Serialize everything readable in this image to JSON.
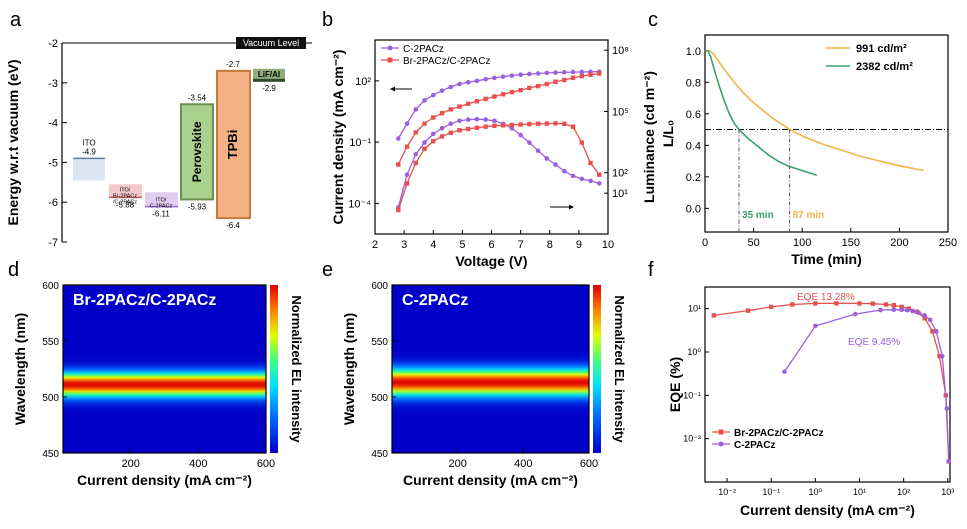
{
  "panels": {
    "a": {
      "letter": "a"
    },
    "b": {
      "letter": "b"
    },
    "c": {
      "letter": "c"
    },
    "d": {
      "letter": "d"
    },
    "e": {
      "letter": "e"
    },
    "f": {
      "letter": "f"
    }
  },
  "chart_data": [
    {
      "id": "a",
      "type": "diagram",
      "ylabel": "Energy w.r.t vacuum (eV)",
      "ylim": [
        -7,
        -2
      ],
      "yticks": [
        "-2",
        "-3",
        "-4",
        "-5",
        "-6",
        "-7"
      ],
      "vacuum_label": "Vacuum Level",
      "bands": [
        {
          "name": "ITO",
          "label": "ITO",
          "top": -4.9,
          "top_label": "-4.9",
          "bottom_label": "",
          "color": "#dbe6f2"
        },
        {
          "name": "ito-br-c",
          "label": "ITO/ Br-2PACz /C-2PACz",
          "top": -5.55,
          "bottom": -5.88,
          "top_label": "",
          "bottom_label": "-5.88",
          "color": "#f3c9c9"
        },
        {
          "name": "ito-c",
          "label": "ITO/ C-2PACz",
          "top": -5.75,
          "bottom": -6.11,
          "top_label": "",
          "bottom_label": "-6.11",
          "color": "#e2cdf0"
        },
        {
          "name": "perovskite",
          "label": "Perovskite",
          "top": -3.54,
          "bottom": -5.93,
          "top_label": "-3.54",
          "bottom_label": "-5.93",
          "color": "#a9d18e"
        },
        {
          "name": "tpbi",
          "label": "TPBi",
          "top": -2.7,
          "bottom": -6.4,
          "top_label": "-2.7",
          "bottom_label": "-6.4",
          "color": "#f4b183"
        },
        {
          "name": "lif-al",
          "label": "LiF/Al",
          "top": -2.9,
          "top_label": "-2.9",
          "color": "#8fae7c"
        }
      ]
    },
    {
      "id": "b",
      "type": "line",
      "xlabel": "Voltage (V)",
      "ylabel_left": "Current density (mA cm⁻²)",
      "ylabel_right": "Luminance (cd m⁻²)",
      "xlim": [
        2,
        10
      ],
      "xticks": [
        "2",
        "3",
        "4",
        "5",
        "6",
        "7",
        "8",
        "9",
        "10"
      ],
      "yleft_log_range": [
        -5.5,
        4.0
      ],
      "yleft_ticks": [
        "10⁻⁴",
        "10⁻¹",
        "10²"
      ],
      "yright_log_range": [
        -1,
        8.5
      ],
      "yright_ticks": [
        "10¹",
        "10²",
        "10⁵",
        "10⁸"
      ],
      "x": [
        2.8,
        3.1,
        3.4,
        3.7,
        4.0,
        4.3,
        4.6,
        4.9,
        5.2,
        5.5,
        5.8,
        6.1,
        6.4,
        6.7,
        7.0,
        7.3,
        7.6,
        7.9,
        8.2,
        8.5,
        8.8,
        9.1,
        9.4,
        9.7
      ],
      "series": [
        {
          "name": "C-2PACz",
          "color": "#9b5fe0",
          "marker": "circle",
          "axis": "left",
          "values": [
            0.15,
            0.8,
            4,
            11,
            20,
            33,
            50,
            70,
            85,
            100,
            120,
            140,
            160,
            180,
            200,
            215,
            230,
            245,
            255,
            262,
            268,
            272,
            276,
            280
          ]
        },
        {
          "name": "C-2PACz",
          "color": "#9b5fe0",
          "marker": "circle",
          "axis": "right",
          "values": [
            2,
            80,
            800,
            3000,
            8000,
            15000,
            25000,
            35000,
            40000,
            42000,
            40000,
            35000,
            25000,
            15000,
            7000,
            3000,
            1200,
            500,
            250,
            120,
            70,
            50,
            40,
            30
          ]
        },
        {
          "name": "Br-2PACz/C-2PACz",
          "color": "#e8504f",
          "marker": "square",
          "axis": "left",
          "values": [
            0.008,
            0.06,
            0.3,
            0.8,
            1.6,
            2.6,
            4,
            5.5,
            7.5,
            10,
            13,
            17,
            22,
            28,
            35,
            45,
            55,
            70,
            90,
            110,
            140,
            170,
            200,
            230
          ]
        },
        {
          "name": "Br-2PACz/C-2PACz",
          "color": "#e8504f",
          "marker": "square",
          "axis": "right",
          "values": [
            1.5,
            30,
            300,
            1500,
            3500,
            6000,
            9000,
            12000,
            14000,
            16000,
            18000,
            20000,
            21000,
            22000,
            23000,
            24000,
            25000,
            25500,
            26000,
            25000,
            18000,
            3000,
            300,
            80
          ]
        }
      ],
      "legend": "top-left"
    },
    {
      "id": "c",
      "type": "line",
      "xlabel": "Time (min)",
      "ylabel": "L/L₀",
      "xlim": [
        0,
        250
      ],
      "ylim": [
        -0.15,
        1.1
      ],
      "xticks": [
        "0",
        "50",
        "100",
        "150",
        "200",
        "250"
      ],
      "yticks": [
        "0.0",
        "0.2",
        "0.4",
        "0.6",
        "0.8",
        "1.0"
      ],
      "reference_y": 0.5,
      "annotations": [
        {
          "text": "35 min",
          "x": 35,
          "color": "#3aa36b"
        },
        {
          "text": "87 min",
          "x": 87,
          "color": "#f0b54a"
        }
      ],
      "series": [
        {
          "name": "991 cd/m²",
          "color": "#f0b54a",
          "x": [
            0,
            5,
            10,
            20,
            30,
            40,
            50,
            60,
            70,
            80,
            87,
            100,
            120,
            140,
            160,
            180,
            200,
            225
          ],
          "values": [
            1.0,
            1.0,
            0.97,
            0.88,
            0.8,
            0.73,
            0.67,
            0.62,
            0.57,
            0.53,
            0.5,
            0.46,
            0.41,
            0.37,
            0.33,
            0.3,
            0.27,
            0.24
          ]
        },
        {
          "name": "2382 cd/m²",
          "color": "#3aa36b",
          "x": [
            0,
            3,
            6,
            10,
            15,
            20,
            25,
            30,
            35,
            45,
            55,
            65,
            75,
            85,
            95,
            105,
            115
          ],
          "values": [
            1.0,
            1.0,
            0.96,
            0.87,
            0.77,
            0.68,
            0.6,
            0.54,
            0.5,
            0.44,
            0.39,
            0.34,
            0.3,
            0.27,
            0.25,
            0.23,
            0.21
          ]
        }
      ],
      "legend": "top-right"
    },
    {
      "id": "d",
      "type": "heatmap",
      "title": "Br-2PACz/C-2PACz",
      "xlabel": "Current density (mA cm⁻²)",
      "ylabel": "Wavelength (nm)",
      "colorbar_label": "Normalized EL intensity",
      "xlim": [
        0,
        600
      ],
      "ylim": [
        450,
        600
      ],
      "xticks": [
        "200",
        "400",
        "600"
      ],
      "yticks": [
        "450",
        "500",
        "550",
        "600"
      ],
      "peak_nm": 511,
      "fwhm_nm": 18
    },
    {
      "id": "e",
      "type": "heatmap",
      "title": "C-2PACz",
      "xlabel": "Current density (mA cm⁻²)",
      "ylabel": "Wavelength (nm)",
      "colorbar_label": "Normalized EL intensity",
      "xlim": [
        0,
        600
      ],
      "ylim": [
        450,
        600
      ],
      "xticks": [
        "200",
        "400",
        "600"
      ],
      "yticks": [
        "450",
        "500",
        "550",
        "600"
      ],
      "peak_nm": 513,
      "fwhm_nm": 20
    },
    {
      "id": "f",
      "type": "line",
      "xlabel": "Current density (mA cm⁻²)",
      "ylabel": "EQE (%)",
      "xlog_range": [
        -2.5,
        3.05
      ],
      "ylog_range": [
        -3,
        1.5
      ],
      "xticks": [
        "10⁻²",
        "10⁻¹",
        "10⁰",
        "10¹",
        "10²",
        "10³"
      ],
      "yticks": [
        "10⁻²",
        "10⁻¹",
        "10⁰",
        "10¹"
      ],
      "annotations": [
        {
          "text": "EQE 13.28%",
          "color": "#e8504f"
        },
        {
          "text": "EQE 9.45%",
          "color": "#9b5fe0"
        }
      ],
      "series": [
        {
          "name": "Br-2PACz/C-2PACz",
          "color": "#e8504f",
          "marker": "square",
          "x": [
            0.005,
            0.03,
            0.1,
            0.3,
            1,
            3,
            10,
            20,
            40,
            60,
            90,
            130,
            200,
            300,
            450,
            650,
            900,
            1050
          ],
          "values": [
            7,
            9,
            11,
            12.5,
            13.2,
            13.3,
            13.2,
            13,
            12.5,
            12,
            11,
            10,
            8.5,
            6,
            3,
            0.8,
            0.1,
            0.003
          ]
        },
        {
          "name": "C-2PACz",
          "color": "#9b5fe0",
          "marker": "circle",
          "x": [
            0.2,
            1,
            8,
            30,
            60,
            90,
            120,
            160,
            220,
            300,
            400,
            550,
            750,
            950,
            1050
          ],
          "values": [
            0.35,
            4,
            7.5,
            9.3,
            9.45,
            9.4,
            9.2,
            8.8,
            8,
            7,
            5.5,
            3,
            0.8,
            0.05,
            0.003
          ]
        }
      ],
      "legend": "bottom-left"
    }
  ]
}
